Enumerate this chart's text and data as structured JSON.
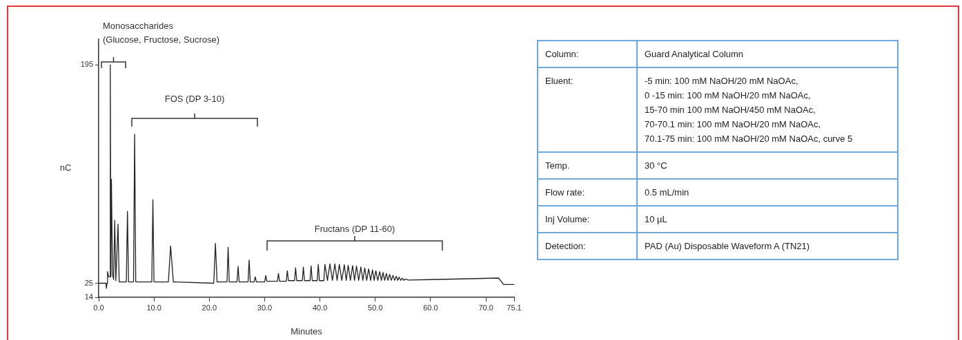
{
  "chart_data": [
    {
      "type": "line",
      "xlabel": "Minutes",
      "ylabel": "nC",
      "x": [
        0,
        1.3,
        1.4,
        1.5,
        1.6,
        1.8,
        2.0,
        2.1,
        2.2,
        2.3,
        2.5,
        2.7,
        2.9,
        3.1,
        3.5,
        3.7,
        5.0,
        5.2,
        5.4,
        6.3,
        6.5,
        6.7,
        9.6,
        9.8,
        10.0,
        12.6,
        13.0,
        13.5,
        20.8,
        21.1,
        21.4,
        23.2,
        23.4,
        23.6,
        25.0,
        25.2,
        25.4,
        27.0,
        27.2,
        27.4,
        28.1,
        28.3,
        28.5,
        30.0,
        30.2,
        30.4,
        32.3,
        32.5,
        32.7,
        33.9,
        34.1,
        34.3,
        35.4,
        35.6,
        35.8,
        36.8,
        37.0,
        37.2,
        38.2,
        38.4,
        38.6,
        39.5,
        39.7,
        39.9,
        40.7,
        40.9,
        41.35,
        41.8,
        42.25,
        42.7,
        43.1,
        43.5,
        43.95,
        44.4,
        44.75,
        45.1,
        45.5,
        45.9,
        46.25,
        46.6,
        47.0,
        47.4,
        47.75,
        48.1,
        48.45,
        48.8,
        49.15,
        49.5,
        49.8,
        50.1,
        50.45,
        50.8,
        51.1,
        51.4,
        51.7,
        52.0,
        52.3,
        52.6,
        52.9,
        53.2,
        53.5,
        53.8,
        54.05,
        54.3,
        54.6,
        54.9,
        55.15,
        55.4,
        56,
        60,
        72.3,
        73.2,
        75.1
      ],
      "values": [
        25,
        25,
        21,
        25,
        34,
        30,
        30,
        195,
        30,
        106,
        32,
        28,
        74,
        27,
        71,
        26,
        26,
        81,
        26,
        26,
        141,
        26,
        26,
        90,
        26,
        26,
        54,
        26,
        25,
        56,
        26,
        26,
        53,
        26,
        26,
        38,
        26,
        26,
        43,
        26,
        26,
        30,
        26,
        26,
        31,
        26.5,
        26.5,
        32.5,
        26.5,
        26.5,
        34.7,
        27,
        27,
        37,
        27,
        27,
        37.6,
        27,
        27,
        38.5,
        27,
        27,
        39.6,
        27,
        27,
        39.7,
        27.2,
        40.1,
        27.2,
        40.1,
        27.2,
        39.7,
        27.2,
        39.4,
        27.2,
        39.0,
        27.2,
        38.7,
        27.2,
        38.3,
        27.2,
        37.6,
        27.2,
        36.9,
        27.2,
        36.2,
        27.2,
        35.4,
        27.2,
        34.7,
        27.2,
        34.0,
        27.2,
        33.3,
        27.2,
        32.6,
        27.2,
        31.8,
        27.2,
        31.1,
        27.2,
        30.4,
        27.2,
        29.7,
        27.2,
        28.9,
        27.2,
        28.2,
        27.5,
        27.8,
        29,
        24,
        24
      ],
      "color": "#222222",
      "xlim": [
        0,
        75.1
      ],
      "xticks": [
        {
          "value": 0,
          "label": "0.0"
        },
        {
          "value": 10,
          "label": "10.0"
        },
        {
          "value": 20,
          "label": "20.0"
        },
        {
          "value": 30,
          "label": "30.0"
        },
        {
          "value": 40,
          "label": "40.0"
        },
        {
          "value": 50,
          "label": "50.0"
        },
        {
          "value": 60,
          "label": "60.0"
        },
        {
          "value": 70,
          "label": "70.0"
        },
        75.1
      ],
      "ylim": [
        14,
        215
      ],
      "yticks": [
        14,
        25,
        195
      ],
      "grid": false,
      "legend": false,
      "annotations": [
        "Monosaccharides\n(Glucose, Fructose, Sucrose)",
        "FOS (DP 3-10)",
        "Fructans (DP 11-60)"
      ]
    },
    {
      "type": "other",
      "annotations": [
        "Column:",
        "Guard Analytical Column",
        "Eluent:",
        "-5 min: 100 mM NaOH/20 mM NaOAc,\n0 -15 min: 100 mM NaOH/20 mM NaOAc,\n15-70 min 100 mM NaOH/450 mM NaOAc,\n70-70.1 min: 100 mM NaOH/20 mM NaOAc,\n70.1-75 min: 100 mM NaOH/20 mM NaOAc, curve 5",
        "Temp.",
        "30 °C",
        "Flow rate:",
        "0.5 mL/min",
        "Inj Volume:",
        "10 µL",
        "Detection:",
        "PAD (Au) Disposable Waveform A (TN21)"
      ]
    }
  ]
}
